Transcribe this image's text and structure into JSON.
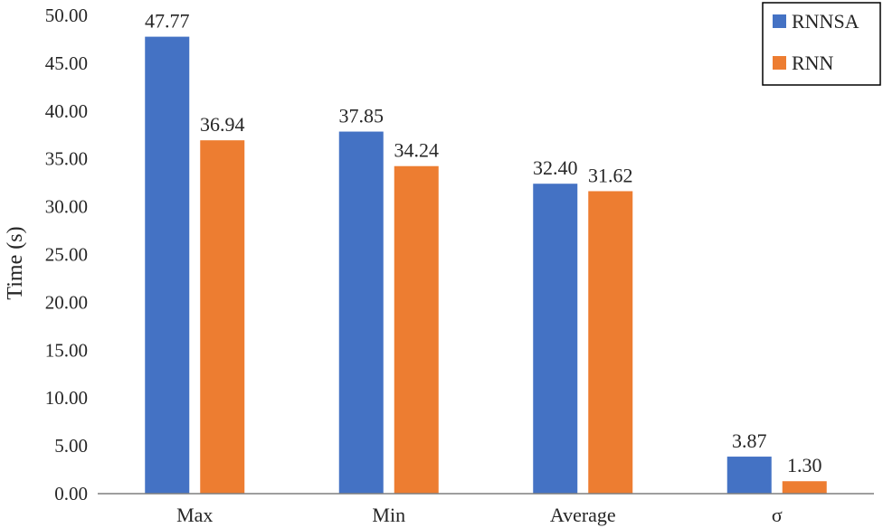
{
  "chart_data": {
    "type": "bar",
    "ylabel": "Time (s)",
    "xlabel": "",
    "ylim": [
      0,
      50
    ],
    "yticks": [
      "0.00",
      "5.00",
      "10.00",
      "15.00",
      "20.00",
      "25.00",
      "30.00",
      "35.00",
      "40.00",
      "45.00",
      "50.00"
    ],
    "categories": [
      "Max",
      "Min",
      "Average",
      "σ"
    ],
    "series": [
      {
        "name": "RNNSA",
        "color": "#4472c4",
        "values": [
          47.77,
          37.85,
          32.4,
          3.87
        ],
        "labels": [
          "47.77",
          "37.85",
          "32.40",
          "3.87"
        ]
      },
      {
        "name": "RNN",
        "color": "#ed7d31",
        "values": [
          36.94,
          34.24,
          31.62,
          1.3
        ],
        "labels": [
          "36.94",
          "34.24",
          "31.62",
          "1.30"
        ]
      }
    ],
    "legend": {
      "position": "top-right"
    },
    "grid": false
  }
}
